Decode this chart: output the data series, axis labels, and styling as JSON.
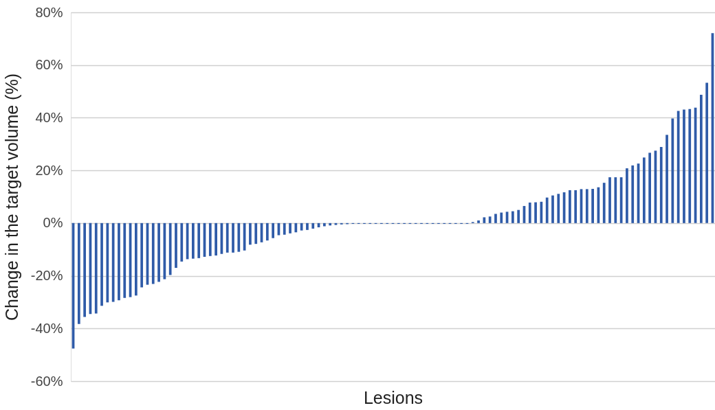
{
  "chart_data": {
    "type": "bar",
    "xlabel": "Lesions",
    "ylabel": "Change in the target volume (%)",
    "categories": [
      null,
      null,
      null,
      null,
      null,
      null,
      null,
      null,
      null,
      null,
      null,
      null,
      null,
      null,
      null,
      null,
      null,
      null,
      null,
      null,
      null,
      null,
      null,
      null,
      null,
      null,
      null,
      null,
      null,
      null,
      null,
      null,
      null,
      null,
      null,
      null,
      null,
      null,
      null,
      null,
      null,
      null,
      null,
      null,
      null,
      null,
      null,
      null,
      null,
      null,
      null,
      null,
      null,
      null,
      null,
      null,
      null,
      null,
      null,
      null,
      null,
      null,
      null,
      null,
      null,
      null,
      null,
      null,
      null,
      null,
      null,
      null,
      null,
      null,
      null,
      null,
      null,
      null,
      null,
      null,
      null,
      null,
      null,
      null,
      null,
      null,
      null,
      null,
      null,
      null,
      null,
      null,
      null,
      null,
      null,
      null,
      null,
      null,
      null,
      null,
      null,
      null,
      null,
      null,
      null,
      null,
      null,
      null,
      null,
      null,
      null,
      null,
      null
    ],
    "values": [
      -47.6,
      -38.3,
      -35.6,
      -34.5,
      -34.3,
      -31.4,
      -30.1,
      -29.9,
      -29.3,
      -28.4,
      -28.1,
      -27.5,
      -24.4,
      -23.4,
      -23.1,
      -22.3,
      -21.3,
      -19.7,
      -17.0,
      -14.6,
      -13.7,
      -13.5,
      -13.3,
      -12.8,
      -12.5,
      -12.3,
      -11.7,
      -11.2,
      -11.2,
      -10.9,
      -10.4,
      -8.2,
      -7.9,
      -7.3,
      -6.6,
      -5.7,
      -4.6,
      -4.4,
      -3.9,
      -3.5,
      -2.8,
      -2.6,
      -2.1,
      -1.6,
      -1.2,
      -0.9,
      -0.7,
      -0.5,
      -0.4,
      -0.3,
      -0.3,
      -0.3,
      -0.3,
      -0.3,
      -0.3,
      -0.3,
      -0.3,
      -0.3,
      -0.3,
      -0.3,
      -0.3,
      -0.3,
      -0.3,
      -0.3,
      -0.3,
      -0.3,
      -0.3,
      -0.3,
      -0.3,
      -0.3,
      0.4,
      1.0,
      2.2,
      2.5,
      3.5,
      4.0,
      4.3,
      4.5,
      5.0,
      6.5,
      7.8,
      7.9,
      8.1,
      9.7,
      10.5,
      11.1,
      11.7,
      12.5,
      12.5,
      12.9,
      12.9,
      13.0,
      13.6,
      15.3,
      17.4,
      17.4,
      17.4,
      20.8,
      21.9,
      22.6,
      24.9,
      26.7,
      27.5,
      28.9,
      33.5,
      39.7,
      42.6,
      43.1,
      43.3,
      43.8,
      48.7,
      53.3,
      72.1
    ],
    "color": "#2f5ba8",
    "ylim": [
      -60,
      80
    ],
    "yticks": [
      {
        "value": -60,
        "label": "-60%"
      },
      {
        "value": -40,
        "label": "-40%"
      },
      {
        "value": -20,
        "label": "-20%"
      },
      {
        "value": 0,
        "label": "0%"
      },
      {
        "value": 20,
        "label": "20%"
      },
      {
        "value": 40,
        "label": "40%"
      },
      {
        "value": 60,
        "label": "60%"
      },
      {
        "value": 80,
        "label": "80%"
      }
    ],
    "grid": "y"
  }
}
